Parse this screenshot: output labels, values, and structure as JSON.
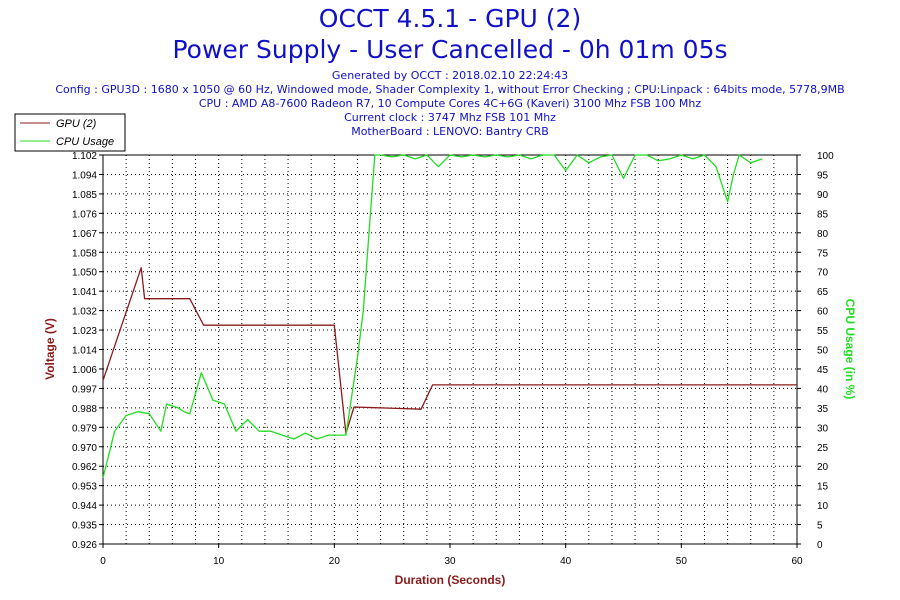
{
  "header": {
    "title": "OCCT 4.5.1 - GPU (2)",
    "subtitle": "Power Supply - User Cancelled - 0h 01m 05s",
    "generated": "Generated by OCCT : 2018.02.10 22:24:43",
    "config": "Config : GPU3D : 1680 x 1050 @ 60 Hz, Windowed mode, Shader Complexity 1, without Error Checking ; CPU:Linpack : 64bits mode, 5778,9MB",
    "cpu": "CPU : AMD A8-7600 Radeon R7, 10 Compute Cores 4C+6G (Kaveri) 3100 Mhz FSB 100 Mhz",
    "clock": "Current clock : 3747 Mhz FSB 101 Mhz",
    "motherboard": "MotherBoard : LENOVO: Bantry CRB"
  },
  "chart_data": {
    "type": "line",
    "grid": true,
    "legend": "top-left",
    "xlabel": "Duration (Seconds)",
    "ylabel": "Voltage (V)",
    "y2label": "CPU Usage (in %)",
    "xlim": [
      0,
      60
    ],
    "ylim": [
      0.926,
      1.102
    ],
    "y2lim": [
      0,
      100
    ],
    "xticks": [
      0,
      10,
      20,
      30,
      40,
      50,
      60
    ],
    "yticks": [
      "0.926",
      "0.935",
      "0.944",
      "0.953",
      "0.962",
      "0.970",
      "0.979",
      "0.988",
      "0.997",
      "1.006",
      "1.014",
      "1.023",
      "1.032",
      "1.041",
      "1.050",
      "1.058",
      "1.067",
      "1.076",
      "1.085",
      "1.094",
      "1.102"
    ],
    "y2ticks": [
      0,
      5,
      10,
      15,
      20,
      25,
      30,
      35,
      40,
      45,
      50,
      55,
      60,
      65,
      70,
      75,
      80,
      85,
      90,
      95,
      100
    ],
    "series": [
      {
        "name": "GPU (2)",
        "color": "#8b1a1a",
        "axis": "left",
        "x": [
          0,
          3.3,
          3.6,
          7.5,
          8.7,
          20,
          21,
          21.7,
          27.5,
          28.5,
          60
        ],
        "y": [
          1.0,
          1.051,
          1.037,
          1.037,
          1.025,
          1.025,
          0.976,
          0.988,
          0.987,
          0.998,
          0.998
        ]
      },
      {
        "name": "CPU Usage",
        "color": "#22dd22",
        "axis": "right",
        "x": [
          0,
          1,
          2,
          3,
          4,
          5,
          5.5,
          6.5,
          7,
          7.5,
          8.5,
          9.5,
          10.5,
          11.5,
          12.5,
          13.5,
          14.5,
          15.5,
          16.5,
          17.5,
          18.5,
          19.5,
          20.5,
          21,
          21.5,
          22,
          22.5,
          23,
          23.5,
          24,
          25,
          26,
          27,
          28,
          29,
          30,
          31,
          32,
          33,
          34,
          35,
          36,
          37,
          38,
          39,
          40,
          41,
          42,
          43,
          44,
          45,
          46,
          47,
          48,
          49,
          50,
          51,
          52,
          53,
          54,
          54.5,
          55,
          56,
          57
        ],
        "y": [
          17,
          29,
          33,
          34,
          33.5,
          29,
          36,
          35,
          34,
          33.5,
          44,
          37,
          36,
          29,
          32,
          29,
          29,
          28,
          27,
          28.5,
          27,
          28,
          28,
          28,
          38,
          48,
          60,
          80,
          100,
          100,
          99.5,
          100,
          99,
          100,
          97,
          100,
          99.5,
          100,
          99.5,
          100,
          99.5,
          100,
          99,
          100,
          100,
          96,
          100,
          98,
          99.5,
          100,
          94,
          100,
          100,
          98.5,
          99,
          100,
          99,
          100,
          97,
          88,
          95,
          100,
          98,
          99
        ]
      }
    ]
  }
}
